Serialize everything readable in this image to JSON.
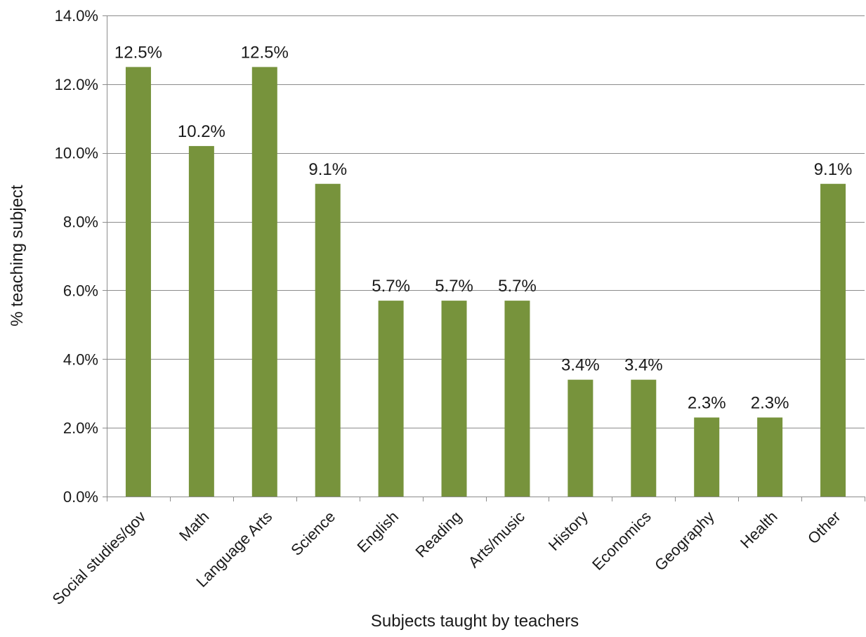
{
  "chart_data": {
    "type": "bar",
    "title": "",
    "xlabel": "Subjects taught by teachers",
    "ylabel": "% teaching subject",
    "ylim": [
      0,
      14
    ],
    "y_ticks": [
      0,
      2,
      4,
      6,
      8,
      10,
      12,
      14
    ],
    "y_tick_labels": [
      "0.0%",
      "2.0%",
      "4.0%",
      "6.0%",
      "8.0%",
      "10.0%",
      "12.0%",
      "14.0%"
    ],
    "grid": true,
    "legend": "none",
    "bar_color": "#77933c",
    "categories": [
      "Social studies/gov",
      "Math",
      "Language Arts",
      "Science",
      "English",
      "Reading",
      "Arts/music",
      "History",
      "Economics",
      "Geography",
      "Health",
      "Other"
    ],
    "values": [
      12.5,
      10.2,
      12.5,
      9.1,
      5.7,
      5.7,
      5.7,
      3.4,
      3.4,
      2.3,
      2.3,
      9.1
    ],
    "data_labels": [
      "12.5%",
      "10.2%",
      "12.5%",
      "9.1%",
      "5.7%",
      "5.7%",
      "5.7%",
      "3.4%",
      "3.4%",
      "2.3%",
      "2.3%",
      "9.1%"
    ]
  }
}
